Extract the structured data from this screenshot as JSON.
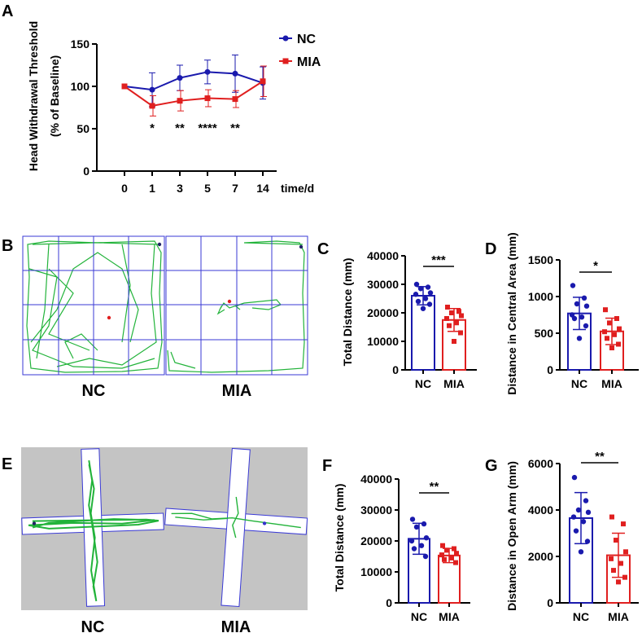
{
  "colors": {
    "nc": "#1a1aad",
    "mia": "#e01f1f",
    "track": "#22b33a",
    "box": "#3a3ad6",
    "bg": "#c4c4c4"
  },
  "panels": {
    "A": {
      "letter": "A"
    },
    "B": {
      "letter": "B",
      "nc_label": "NC",
      "mia_label": "MIA"
    },
    "C": {
      "letter": "C"
    },
    "D": {
      "letter": "D"
    },
    "E": {
      "letter": "E",
      "nc_label": "NC",
      "mia_label": "MIA"
    },
    "F": {
      "letter": "F"
    },
    "G": {
      "letter": "G"
    }
  },
  "chart_data": [
    {
      "id": "A",
      "type": "line",
      "ylabel_line1": "Head Withdrawal Threshold",
      "ylabel_line2": "(% of Baseline)",
      "xlabel": "time/d",
      "categories": [
        "0",
        "1",
        "3",
        "5",
        "7",
        "14"
      ],
      "yticks": [
        0,
        50,
        100,
        150
      ],
      "ylim": [
        0,
        150
      ],
      "series": [
        {
          "name": "NC",
          "values": [
            100,
            96,
            110,
            117,
            115,
            104
          ],
          "errors": [
            0,
            20,
            15,
            14,
            22,
            19
          ]
        },
        {
          "name": "MIA",
          "values": [
            100,
            77,
            83,
            86,
            85,
            106
          ],
          "errors": [
            0,
            12,
            12,
            10,
            10,
            18
          ]
        }
      ],
      "significance": [
        "",
        "*",
        "**",
        "****",
        "**",
        ""
      ],
      "legend_position": "top-right"
    },
    {
      "id": "C",
      "type": "bar",
      "ylabel": "Total Distance (mm)",
      "categories": [
        "NC",
        "MIA"
      ],
      "values": [
        26000,
        17500
      ],
      "errors": [
        3200,
        4000
      ],
      "yticks": [
        0,
        10000,
        20000,
        30000,
        40000
      ],
      "ylim": [
        0,
        40000
      ],
      "points": [
        [
          30000,
          29000,
          28500,
          27000,
          26500,
          25000,
          24000,
          23000,
          21500
        ],
        [
          22000,
          20500,
          20000,
          19000,
          18000,
          16500,
          15500,
          13000,
          10000
        ]
      ],
      "significance": "***"
    },
    {
      "id": "D",
      "type": "bar",
      "ylabel": "Distance in Central Area (mm)",
      "categories": [
        "NC",
        "MIA"
      ],
      "values": [
        770,
        525
      ],
      "errors": [
        220,
        180
      ],
      "yticks": [
        0,
        500,
        1000,
        1500
      ],
      "ylim": [
        0,
        1500
      ],
      "points": [
        [
          1150,
          980,
          900,
          870,
          750,
          720,
          700,
          600,
          430
        ],
        [
          820,
          700,
          640,
          560,
          520,
          480,
          430,
          350,
          300
        ]
      ],
      "significance": "*"
    },
    {
      "id": "F",
      "type": "bar",
      "ylabel": "Total Distance (mm)",
      "categories": [
        "NC",
        "MIA"
      ],
      "values": [
        20700,
        15300
      ],
      "errors": [
        5000,
        2300
      ],
      "yticks": [
        0,
        10000,
        20000,
        30000,
        40000
      ],
      "ylim": [
        0,
        40000
      ],
      "points": [
        [
          27000,
          25500,
          24500,
          21000,
          20000,
          18500,
          17500,
          15000
        ],
        [
          18500,
          17500,
          17000,
          16000,
          15500,
          14500,
          14000,
          13000
        ]
      ],
      "significance": "**"
    },
    {
      "id": "G",
      "type": "bar",
      "ylabel": "Distance in Open Arm (mm)",
      "categories": [
        "NC",
        "MIA"
      ],
      "values": [
        3650,
        2050
      ],
      "errors": [
        1100,
        950
      ],
      "yticks": [
        0,
        2000,
        4000,
        6000
      ],
      "ylim": [
        0,
        6000
      ],
      "points": [
        [
          5400,
          4400,
          4000,
          3900,
          3700,
          3500,
          3100,
          2650,
          2200
        ],
        [
          3700,
          3400,
          2700,
          2200,
          1900,
          1700,
          1400,
          1100,
          900
        ]
      ],
      "significance": "**"
    }
  ]
}
